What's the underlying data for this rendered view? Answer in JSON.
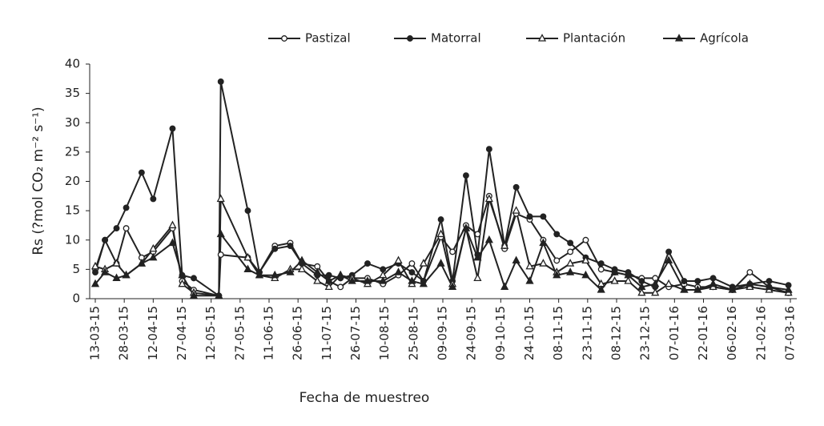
{
  "chart_data": {
    "type": "line",
    "y_label": "Rs (?mol CO₂ m⁻² s⁻¹)",
    "x_label": "Fecha de muestreo",
    "x": [
      "13-03-15",
      "18-03-15",
      "24-03-15",
      "29-03-15",
      "06-04-15",
      "12-04-15",
      "22-04-15",
      "27-04-15",
      "03-05-15",
      "16-05-15",
      "17-05-15",
      "31-05-15",
      "06-06-15",
      "14-06-15",
      "22-06-15",
      "28-06-15",
      "06-07-15",
      "12-07-15",
      "18-07-15",
      "24-07-15",
      "01-08-15",
      "09-08-15",
      "17-08-15",
      "24-08-15",
      "30-08-15",
      "08-09-15",
      "14-09-15",
      "21-09-15",
      "27-09-15",
      "03-10-15",
      "11-10-15",
      "17-10-15",
      "24-10-15",
      "31-10-15",
      "07-11-15",
      "14-11-15",
      "22-11-15",
      "30-11-15",
      "07-12-15",
      "14-12-15",
      "21-12-15",
      "28-12-15",
      "04-01-16",
      "12-01-16",
      "19-01-16",
      "27-01-16",
      "06-02-16",
      "15-02-16",
      "25-02-16",
      "06-03-16"
    ],
    "xticks": [
      "13-03-15",
      "28-03-15",
      "12-04-15",
      "27-04-15",
      "12-05-15",
      "27-05-15",
      "11-06-15",
      "26-06-15",
      "11-07-15",
      "26-07-15",
      "10-08-15",
      "25-08-15",
      "09-09-15",
      "24-09-15",
      "09-10-15",
      "24-10-15",
      "08-11-15",
      "23-11-15",
      "08-12-15",
      "23-12-15",
      "07-01-16",
      "22-01-16",
      "06-02-16",
      "21-02-16",
      "07-03-16"
    ],
    "xlim": [
      "13-03-15",
      "07-03-16"
    ],
    "ylim": [
      0,
      40
    ],
    "yticks": [
      0,
      5,
      10,
      15,
      20,
      25,
      30,
      35,
      40
    ],
    "series": [
      {
        "name": "Pastizal",
        "color": "#222222",
        "marker": "circle-open",
        "values": [
          5,
          10,
          6,
          12,
          7,
          8,
          12,
          3,
          1.5,
          0.5,
          7.5,
          7,
          4.5,
          9,
          9.5,
          6,
          5.5,
          3,
          2,
          3.5,
          3.5,
          2.5,
          4,
          6,
          3,
          10.5,
          8,
          12.5,
          11,
          17.5,
          8.5,
          14.5,
          13.5,
          10,
          6.5,
          8,
          10,
          5,
          4.5,
          4,
          3.5,
          3.5,
          2,
          2.5,
          2,
          2,
          1.5,
          4.5,
          2,
          1
        ]
      },
      {
        "name": "Matorral",
        "color": "#222222",
        "marker": "circle-filled",
        "values": [
          4.5,
          10,
          12,
          15.5,
          21.5,
          17,
          29,
          4,
          3.5,
          0.5,
          37,
          15,
          4.5,
          8.5,
          9,
          6,
          4,
          4,
          3.5,
          4,
          6,
          5,
          6,
          4.5,
          3,
          13.5,
          3,
          21,
          7.5,
          25.5,
          9,
          19,
          14,
          14,
          11,
          9.5,
          7,
          6,
          5,
          4.5,
          3,
          2,
          8,
          3,
          3,
          3.5,
          2,
          2.5,
          3,
          2.3
        ]
      },
      {
        "name": "Plantación",
        "color": "#222222",
        "marker": "triangle-open",
        "values": [
          5.5,
          5,
          6,
          4,
          6,
          8.5,
          12.5,
          2.5,
          1,
          0.5,
          17,
          7,
          4,
          3.5,
          5,
          5,
          3,
          2,
          4,
          3.5,
          2.5,
          4,
          6.5,
          2.5,
          6,
          11,
          2.5,
          12,
          3.5,
          17,
          9,
          15,
          5.5,
          6,
          4.5,
          6,
          6.5,
          2.5,
          3,
          3,
          1,
          1,
          2.5,
          1.5,
          1.5,
          2,
          1.5,
          2,
          1.5,
          1
        ]
      },
      {
        "name": "Agrícola",
        "color": "#222222",
        "marker": "triangle-filled",
        "values": [
          2.5,
          4.5,
          3.5,
          4,
          6,
          7,
          9.5,
          4,
          0.5,
          0.5,
          11,
          5,
          4,
          4,
          4.5,
          6.5,
          4.5,
          3,
          4,
          3,
          3,
          3,
          4.5,
          3,
          2.5,
          6,
          2,
          12,
          7,
          10,
          2,
          6.5,
          3,
          9.5,
          4,
          4.5,
          4,
          1.5,
          4.5,
          4,
          2,
          2.5,
          6.5,
          1.5,
          1.5,
          2.5,
          1.5,
          2.5,
          2,
          1.5
        ]
      }
    ]
  }
}
